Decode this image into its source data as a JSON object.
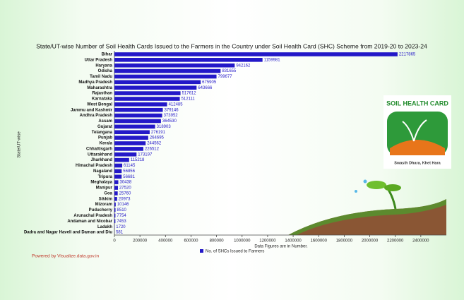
{
  "chart_data": {
    "type": "hbar",
    "title": "State/UT-wise Number of Soil Health Cards Issued to the Farmers in the Country under Soil Health Card (SHC) Scheme from 2019-20 to 2023-24",
    "y_label": "State/UT-wise",
    "x_label": "Data Figures are in Number.",
    "footer": "Powered by Visualize.data.gov.in",
    "logo": {
      "title": "SOIL HEALTH CARD",
      "tagline": "Swasth Dhara, Khet Hara"
    },
    "categories": [
      "Bihar",
      "Uttar Pradesh",
      "Haryana",
      "Odisha",
      "Tamil Nadu",
      "Madhya Pradesh",
      "Maharashtra",
      "Rajasthan",
      "Karnataka",
      "West Bengal",
      "Jammu and Kashmir",
      "Andhra Pradesh",
      "Assam",
      "Gujarat",
      "Telangana",
      "Punjab",
      "Kerala",
      "Chhattisgarh",
      "Uttarakhand",
      "Jharkhand",
      "Himachal Pradesh",
      "Nagaland",
      "Tripura",
      "Meghalaya",
      "Manipur",
      "Goa",
      "Sikkim",
      "Mizoram",
      "Puducherry",
      "Arunachal Pradesh",
      "Andaman and Nicobar",
      "Ladakh",
      "Dadra and Nagar Haveli and Daman and Diu"
    ],
    "series": [
      {
        "name": "No. of SHCs Issued to Farmers",
        "color": "#2318c8",
        "values": [
          2217865,
          1159981,
          942162,
          831655,
          799677,
          675905,
          643666,
          517612,
          512111,
          412485,
          379146,
          373952,
          364530,
          318903,
          276191,
          264695,
          244562,
          226512,
          173197,
          115218,
          61145,
          56856,
          56681,
          30438,
          27520,
          25760,
          20973,
          10146,
          8510,
          7754,
          7453,
          1720,
          581
        ]
      }
    ],
    "xlim": [
      0,
      2600000
    ],
    "xticks": [
      0,
      200000,
      400000,
      600000,
      800000,
      1000000,
      1200000,
      1400000,
      1600000,
      1800000,
      2000000,
      2200000,
      2400000
    ],
    "legend": "bottom"
  }
}
